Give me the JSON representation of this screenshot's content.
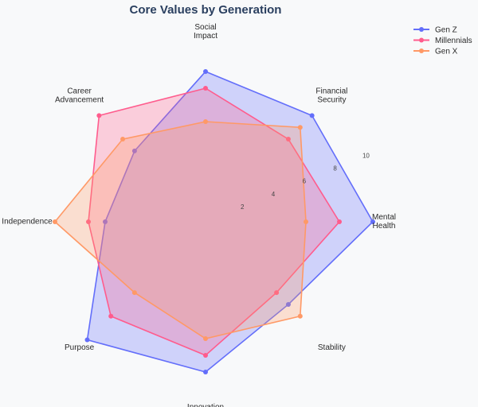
{
  "chart_data": {
    "type": "radar",
    "title": "Core Values by Generation",
    "categories": [
      [
        "Social",
        "Impact"
      ],
      [
        "Financial",
        "Security"
      ],
      [
        "Mental",
        "Health"
      ],
      [
        "Stability"
      ],
      [
        "Innovation"
      ],
      [
        "Purpose"
      ],
      [
        "Independence"
      ],
      [
        "Career",
        "Advancement"
      ]
    ],
    "radial_range": [
      0,
      10
    ],
    "radial_ticks": [
      "2",
      "4",
      "6",
      "8",
      "10"
    ],
    "legend_position": "top-right",
    "series": [
      {
        "name": "Gen Z",
        "color": "#636efa",
        "values": [
          9,
          9,
          10,
          7,
          9,
          10,
          6,
          6
        ]
      },
      {
        "name": "Millennials",
        "color": "#ff5c8d",
        "values": [
          8,
          7,
          8,
          6,
          8,
          8,
          7,
          9
        ]
      },
      {
        "name": "Gen X",
        "color": "#ff9966",
        "values": [
          6,
          8,
          6,
          8,
          7,
          6,
          9,
          7
        ]
      }
    ]
  }
}
